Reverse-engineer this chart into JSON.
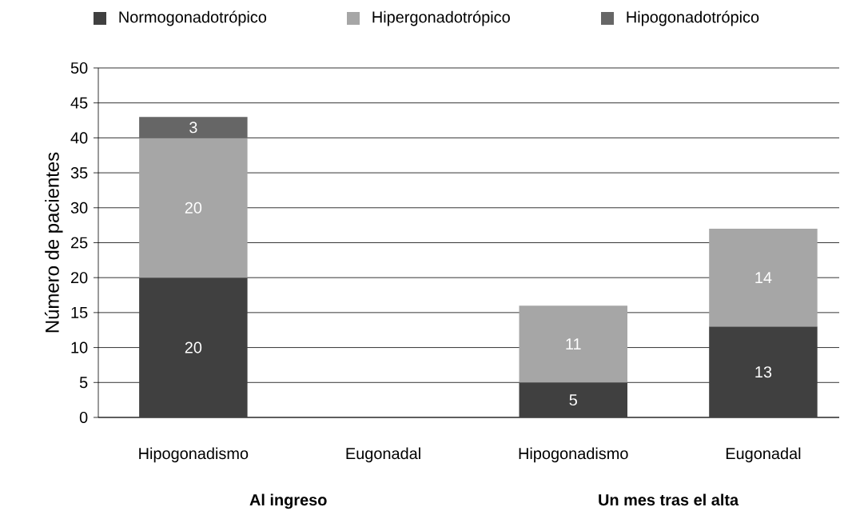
{
  "chart_data": {
    "type": "bar",
    "stacked": true,
    "ylabel": "Número de pacientes",
    "categories": [
      "Hipogonadismo",
      "Eugonadal",
      "Hipogonadismo",
      "Eugonadal"
    ],
    "series": [
      {
        "name": "Normogonadotrópico",
        "color": "#404040",
        "values": [
          20,
          null,
          5,
          13
        ]
      },
      {
        "name": "Hipergonadotrópico",
        "color": "#a6a6a6",
        "values": [
          20,
          null,
          11,
          14
        ]
      },
      {
        "name": "Hipogonadotrópico",
        "color": "#666666",
        "values": [
          3,
          null,
          null,
          null
        ]
      }
    ],
    "ylim": [
      0,
      50
    ],
    "yticks": [
      0,
      5,
      10,
      15,
      20,
      25,
      30,
      35,
      40,
      45,
      50
    ],
    "grid": "y",
    "legend": "top",
    "data_labels": true,
    "annotations": [
      "Al ingreso",
      "Un mes tras el alta"
    ]
  }
}
